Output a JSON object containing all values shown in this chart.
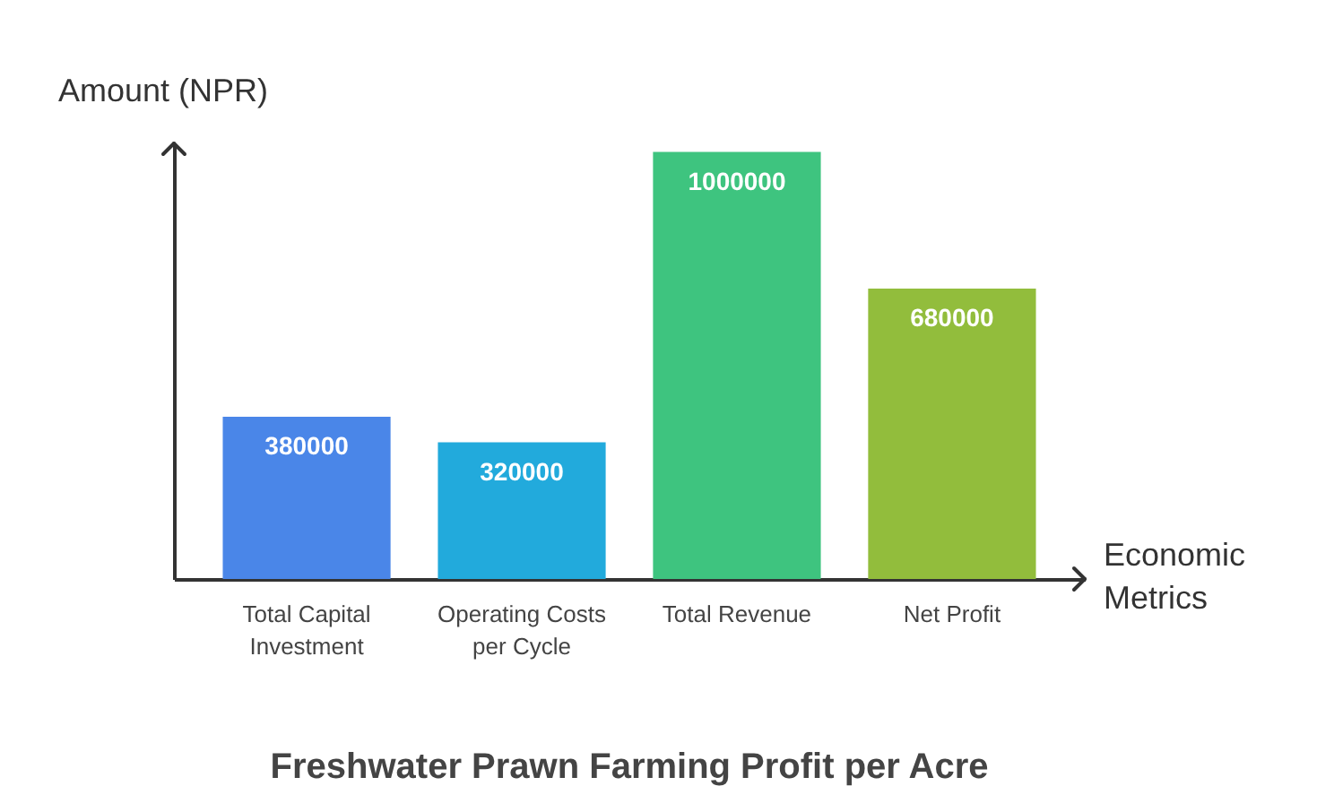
{
  "chart_data": {
    "type": "bar",
    "title": "Freshwater Prawn Farming Profit per Acre",
    "xlabel": "Economic Metrics",
    "ylabel": "Amount (NPR)",
    "categories": [
      "Total Capital Investment",
      "Operating Costs per Cycle",
      "Total Revenue",
      "Net Profit"
    ],
    "values": [
      380000,
      320000,
      1000000,
      680000
    ],
    "colors": [
      "#4a86e8",
      "#22aadc",
      "#3ec47f",
      "#92bd3c"
    ],
    "ylim": [
      0,
      1020000
    ],
    "data_labels": true,
    "grid": false
  }
}
